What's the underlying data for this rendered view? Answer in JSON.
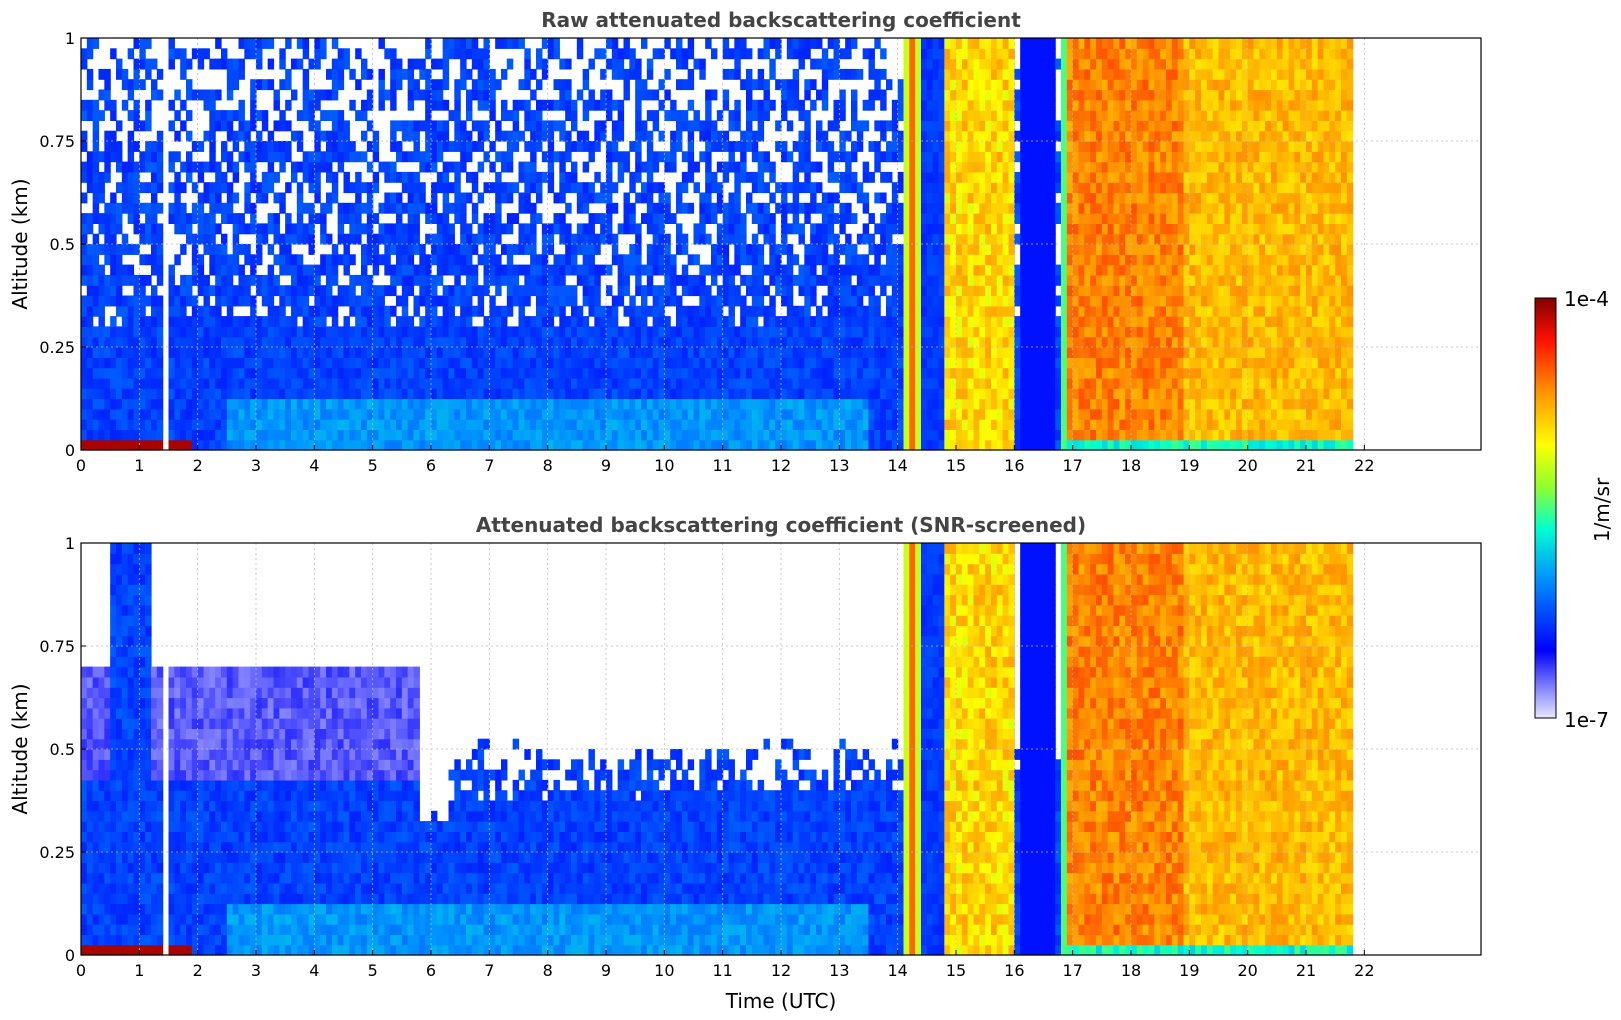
{
  "chart_data": [
    {
      "type": "heatmap",
      "title": "Raw attenuated backscattering coefficient",
      "ylabel": "Altitude (km)",
      "xlabel": "",
      "xlim": [
        0,
        24
      ],
      "ylim": [
        0,
        1
      ],
      "xticks": [
        "0",
        "1",
        "2",
        "3",
        "4",
        "5",
        "6",
        "7",
        "8",
        "9",
        "10",
        "11",
        "12",
        "13",
        "14",
        "15",
        "16",
        "17",
        "18",
        "19",
        "20",
        "21",
        "22"
      ],
      "yticks": [
        "0",
        "0.25",
        "0.5",
        "0.75",
        "1"
      ],
      "grid": true,
      "data_extent_hours": [
        0,
        21.8
      ],
      "gap_hours": [
        1.43,
        1.52
      ]
    },
    {
      "type": "heatmap",
      "title": "Attenuated backscattering coefficient (SNR-screened)",
      "ylabel": "Altitude (km)",
      "xlabel": "Time (UTC)",
      "xlim": [
        0,
        24
      ],
      "ylim": [
        0,
        1
      ],
      "xticks": [
        "0",
        "1",
        "2",
        "3",
        "4",
        "5",
        "6",
        "7",
        "8",
        "9",
        "10",
        "11",
        "12",
        "13",
        "14",
        "15",
        "16",
        "17",
        "18",
        "19",
        "20",
        "21",
        "22"
      ],
      "yticks": [
        "0",
        "0.25",
        "0.5",
        "0.75",
        "1"
      ],
      "grid": true,
      "data_extent_hours": [
        0,
        21.8
      ],
      "gap_hours": [
        1.43,
        1.52
      ]
    }
  ],
  "colorbar": {
    "label": "1/m/sr",
    "max_label": "1e-4",
    "min_label": "1e-7",
    "colormap": "jet",
    "colors": [
      "#e8e8ff",
      "#0000ff",
      "#00c0ff",
      "#00ffc0",
      "#ffff00",
      "#ff8000",
      "#ff0000",
      "#800000"
    ]
  }
}
